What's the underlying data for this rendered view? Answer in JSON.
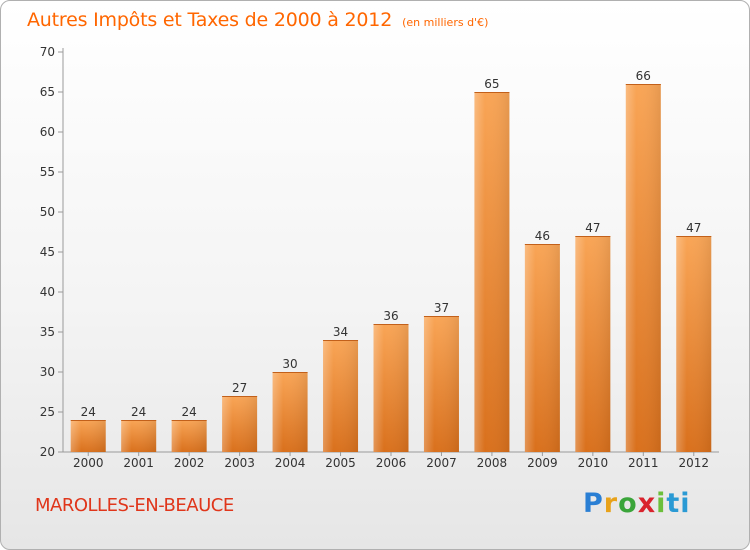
{
  "chart_data": {
    "type": "bar",
    "title": "Autres Impôts et Taxes de 2000 à 2012",
    "subtitle": "(en milliers d'€)",
    "categories": [
      "2000",
      "2001",
      "2002",
      "2003",
      "2004",
      "2005",
      "2006",
      "2007",
      "2008",
      "2009",
      "2010",
      "2011",
      "2012"
    ],
    "values": [
      24,
      24,
      24,
      27,
      30,
      34,
      36,
      37,
      65,
      46,
      47,
      66,
      47
    ],
    "ylim": [
      20,
      70
    ],
    "yticks": [
      20,
      25,
      30,
      35,
      40,
      45,
      50,
      55,
      60,
      65,
      70
    ],
    "grid": false,
    "bar_color": "#f08a30"
  },
  "commune": "MAROLLES-EN-BEAUCE",
  "logo": {
    "letters": [
      "P",
      "r",
      "o",
      "x",
      "i",
      "ti"
    ]
  }
}
